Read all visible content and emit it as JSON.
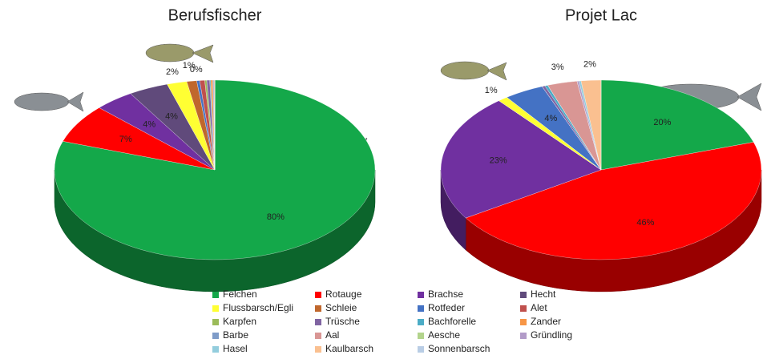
{
  "chart_data": [
    {
      "type": "pie",
      "title": "Berufsfischer",
      "categories": [
        "Felchen",
        "Rotauge",
        "Brachse",
        "Hecht",
        "Flussbarsch/Egli",
        "Schleie",
        "Rotfeder",
        "Alet",
        "Karpfen",
        "Trüsche",
        "Bachforelle",
        "Zander",
        "Barbe",
        "Aal",
        "Aesche",
        "Gründling",
        "Hasel",
        "Kaulbarsch",
        "Sonnenbarsch"
      ],
      "colors": [
        "#14a84a",
        "#ff0000",
        "#7030a0",
        "#604a7b",
        "#ffff33",
        "#c0672c",
        "#4472c4",
        "#c0504d",
        "#9bbb59",
        "#8064a2",
        "#4bacc6",
        "#f79646",
        "#7f9cc8",
        "#d99694",
        "#b3d48c",
        "#b29bc8",
        "#93cddd",
        "#fac090",
        "#b9cde5"
      ],
      "values": [
        80,
        7,
        4,
        4,
        2,
        1,
        0.3,
        0.5,
        0.2,
        0.3,
        0.1,
        0.2,
        0.1,
        0.1,
        0,
        0,
        0,
        0,
        0
      ],
      "value_labels": [
        "80%",
        "7%",
        "4%",
        "4%",
        "2%",
        "1%",
        "0%",
        null,
        null,
        null,
        null,
        null,
        null,
        null,
        null,
        null,
        null,
        null,
        null
      ]
    },
    {
      "type": "pie",
      "title": "Projet Lac",
      "values": [
        20,
        46,
        23,
        0,
        1,
        0,
        4,
        0,
        0,
        0.3,
        0.3,
        0,
        0,
        3,
        0,
        0.2,
        0.2,
        2,
        0
      ],
      "value_labels": [
        "20%",
        "46%",
        "23%",
        null,
        "1%",
        null,
        "4%",
        null,
        null,
        null,
        null,
        null,
        null,
        "3%",
        null,
        null,
        null,
        "2%",
        null
      ]
    }
  ]
}
